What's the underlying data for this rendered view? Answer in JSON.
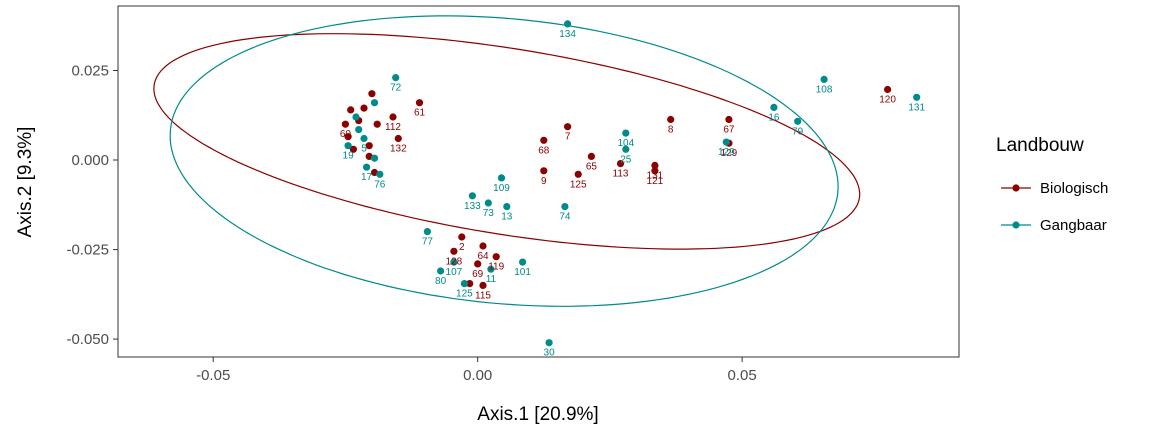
{
  "chart_data": {
    "type": "scatter",
    "xlabel": "Axis.1   [20.9%]",
    "ylabel": "Axis.2   [9.3%]",
    "xlim": [
      -0.068,
      0.091
    ],
    "ylim": [
      -0.055,
      0.043
    ],
    "x_ticks": [
      -0.05,
      0.0,
      0.05
    ],
    "x_tick_labels": [
      "-0.05",
      "0.00",
      "0.05"
    ],
    "y_ticks": [
      -0.05,
      -0.025,
      0.0,
      0.025
    ],
    "y_tick_labels": [
      "-0.050",
      "-0.025",
      "0.000",
      "0.025"
    ],
    "grid": false,
    "legend": {
      "title": "Landbouw",
      "position": "right",
      "entries": [
        {
          "label": "Biologisch",
          "color": "#8B0000"
        },
        {
          "label": "Gangbaar",
          "color": "#008B8B"
        }
      ]
    },
    "ellipses": [
      {
        "series": "Biologisch",
        "color": "#8B0000",
        "cx": 0.0055,
        "cy": 0.0052,
        "rx": 0.0686,
        "ry": 0.0255,
        "angle_deg": -14.5
      },
      {
        "series": "Gangbaar",
        "color": "#008B8B",
        "cx": 0.005,
        "cy": -0.0003,
        "rx": 0.0638,
        "ry": 0.0395,
        "angle_deg": -10.5
      }
    ],
    "series": [
      {
        "name": "Biologisch",
        "color": "#8B0000",
        "points": [
          {
            "x": 0.0775,
            "y": 0.0197,
            "label": "120"
          },
          {
            "x": 0.0475,
            "y": 0.0113,
            "label": "67"
          },
          {
            "x": 0.0475,
            "y": 0.0047,
            "label": "129"
          },
          {
            "x": 0.0365,
            "y": 0.0113,
            "label": "8"
          },
          {
            "x": 0.0335,
            "y": -0.0015,
            "label": "131"
          },
          {
            "x": 0.0335,
            "y": -0.003,
            "label": "121"
          },
          {
            "x": 0.027,
            "y": -0.001,
            "label": "113"
          },
          {
            "x": 0.0215,
            "y": 0.001,
            "label": "65"
          },
          {
            "x": 0.019,
            "y": -0.004,
            "label": "125"
          },
          {
            "x": 0.017,
            "y": 0.0093,
            "label": "7"
          },
          {
            "x": 0.0125,
            "y": 0.0055,
            "label": "68"
          },
          {
            "x": 0.0125,
            "y": -0.003,
            "label": "9"
          },
          {
            "x": -0.011,
            "y": 0.016,
            "label": "61"
          },
          {
            "x": -0.015,
            "y": 0.006,
            "label": "132"
          },
          {
            "x": -0.016,
            "y": 0.012,
            "label": "112"
          },
          {
            "x": -0.02,
            "y": 0.0185,
            "label": ""
          },
          {
            "x": -0.0215,
            "y": 0.0145,
            "label": ""
          },
          {
            "x": -0.0225,
            "y": 0.011,
            "label": ""
          },
          {
            "x": -0.024,
            "y": 0.014,
            "label": ""
          },
          {
            "x": -0.025,
            "y": 0.01,
            "label": "60"
          },
          {
            "x": -0.0245,
            "y": 0.0065,
            "label": ""
          },
          {
            "x": -0.0235,
            "y": 0.003,
            "label": ""
          },
          {
            "x": -0.0205,
            "y": 0.004,
            "label": ""
          },
          {
            "x": -0.019,
            "y": 0.01,
            "label": ""
          },
          {
            "x": -0.0205,
            "y": 0.001,
            "label": ""
          },
          {
            "x": -0.0195,
            "y": -0.0035,
            "label": ""
          },
          {
            "x": -0.0045,
            "y": -0.0255,
            "label": "128"
          },
          {
            "x": -0.003,
            "y": -0.0215,
            "label": "2"
          },
          {
            "x": 0.001,
            "y": -0.024,
            "label": "64"
          },
          {
            "x": 0.0035,
            "y": -0.027,
            "label": "119"
          },
          {
            "x": 0.0,
            "y": -0.029,
            "label": "69"
          },
          {
            "x": 0.001,
            "y": -0.035,
            "label": "115"
          },
          {
            "x": -0.0015,
            "y": -0.0345,
            "label": ""
          }
        ]
      },
      {
        "name": "Gangbaar",
        "color": "#008B8B",
        "points": [
          {
            "x": 0.017,
            "y": 0.038,
            "label": "134"
          },
          {
            "x": 0.083,
            "y": 0.0175,
            "label": "131"
          },
          {
            "x": 0.0655,
            "y": 0.0225,
            "label": "108"
          },
          {
            "x": 0.0605,
            "y": 0.0108,
            "label": "79"
          },
          {
            "x": 0.056,
            "y": 0.0147,
            "label": "16"
          },
          {
            "x": 0.047,
            "y": 0.005,
            "label": "129"
          },
          {
            "x": 0.028,
            "y": 0.0075,
            "label": "104"
          },
          {
            "x": 0.028,
            "y": 0.003,
            "label": "25"
          },
          {
            "x": 0.0165,
            "y": -0.013,
            "label": "74"
          },
          {
            "x": 0.0045,
            "y": -0.005,
            "label": "109"
          },
          {
            "x": 0.0055,
            "y": -0.013,
            "label": "13"
          },
          {
            "x": 0.002,
            "y": -0.012,
            "label": "73"
          },
          {
            "x": -0.001,
            "y": -0.01,
            "label": "133"
          },
          {
            "x": -0.0095,
            "y": -0.02,
            "label": "77"
          },
          {
            "x": -0.0155,
            "y": 0.023,
            "label": "72"
          },
          {
            "x": -0.0195,
            "y": 0.016,
            "label": ""
          },
          {
            "x": -0.023,
            "y": 0.012,
            "label": ""
          },
          {
            "x": -0.0245,
            "y": 0.004,
            "label": "19"
          },
          {
            "x": -0.0215,
            "y": 0.006,
            "label": "5"
          },
          {
            "x": -0.0195,
            "y": 0.0005,
            "label": ""
          },
          {
            "x": -0.021,
            "y": -0.002,
            "label": "17"
          },
          {
            "x": -0.0185,
            "y": -0.004,
            "label": "76"
          },
          {
            "x": -0.0225,
            "y": 0.0085,
            "label": ""
          },
          {
            "x": -0.007,
            "y": -0.031,
            "label": "80"
          },
          {
            "x": -0.0045,
            "y": -0.0285,
            "label": "107"
          },
          {
            "x": 0.0085,
            "y": -0.0285,
            "label": "101"
          },
          {
            "x": 0.0025,
            "y": -0.0305,
            "label": "11"
          },
          {
            "x": -0.0025,
            "y": -0.0345,
            "label": "125"
          },
          {
            "x": 0.0135,
            "y": -0.051,
            "label": "30"
          }
        ]
      }
    ]
  }
}
